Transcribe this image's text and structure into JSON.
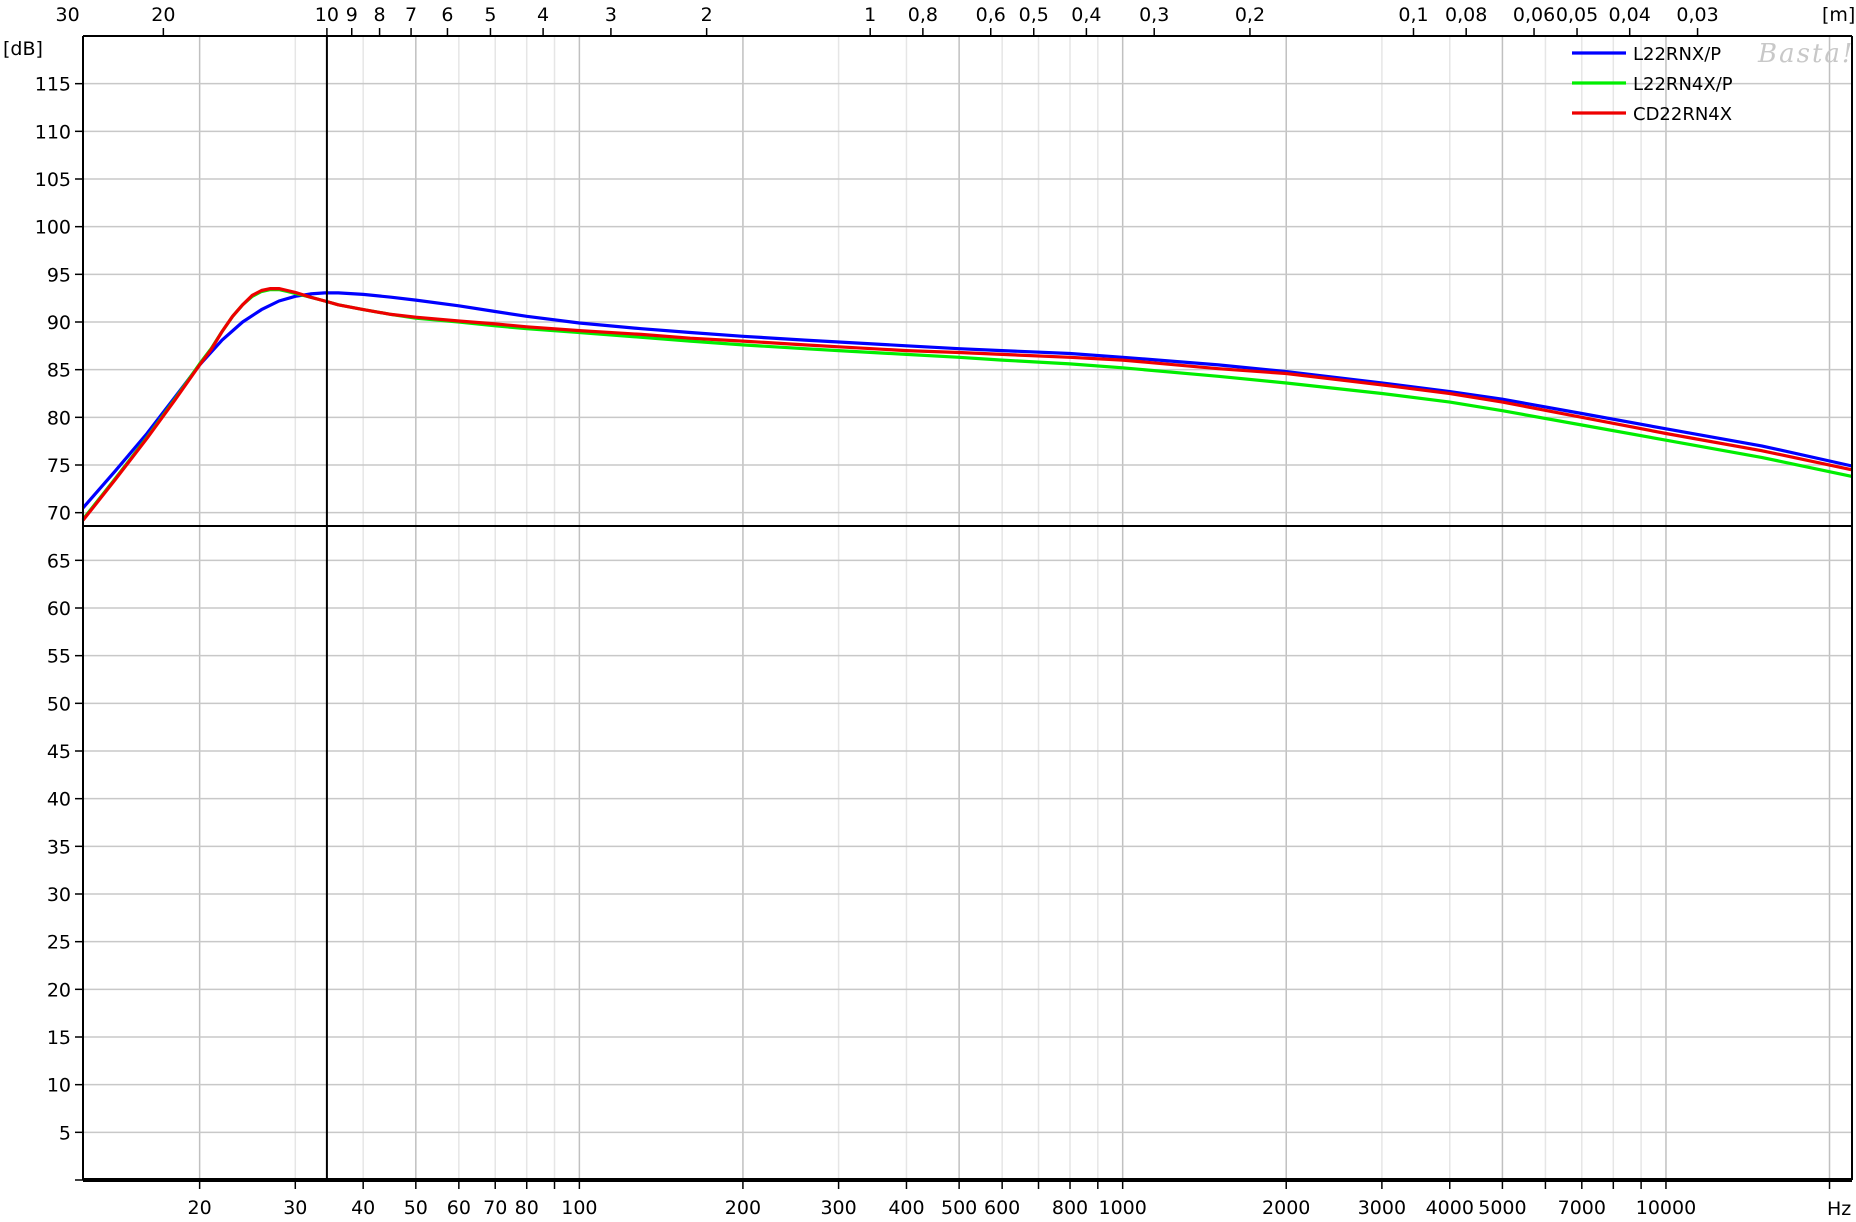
{
  "chart_data": {
    "type": "line",
    "xscale": "log",
    "xlim": [
      12.2,
      22000
    ],
    "ylim": [
      0,
      120
    ],
    "y_unit_label": "[dB]",
    "x_unit_label": "Hz",
    "top_unit_label": "[m]",
    "watermark": "Basta!",
    "grid": true,
    "legend_position": "top-right",
    "y_ticks": [
      5,
      10,
      15,
      20,
      25,
      30,
      35,
      40,
      45,
      50,
      55,
      60,
      65,
      70,
      75,
      80,
      85,
      90,
      95,
      100,
      105,
      110,
      115
    ],
    "x_ticks": [
      {
        "value": 20,
        "label": "20"
      },
      {
        "value": 30,
        "label": "30"
      },
      {
        "value": 40,
        "label": "40"
      },
      {
        "value": 50,
        "label": "50"
      },
      {
        "value": 60,
        "label": "60"
      },
      {
        "value": 70,
        "label": "70"
      },
      {
        "value": 80,
        "label": "80"
      },
      {
        "value": 100,
        "label": "100"
      },
      {
        "value": 200,
        "label": "200"
      },
      {
        "value": 300,
        "label": "300"
      },
      {
        "value": 400,
        "label": "400"
      },
      {
        "value": 500,
        "label": "500"
      },
      {
        "value": 600,
        "label": "600"
      },
      {
        "value": 800,
        "label": "800"
      },
      {
        "value": 1000,
        "label": "1000"
      },
      {
        "value": 2000,
        "label": "2000"
      },
      {
        "value": 3000,
        "label": "3000"
      },
      {
        "value": 4000,
        "label": "4000"
      },
      {
        "value": 5000,
        "label": "5000"
      },
      {
        "value": 7000,
        "label": "7000"
      },
      {
        "value": 10000,
        "label": "10000"
      }
    ],
    "top_ticks": [
      {
        "freq": 11.43,
        "label": "30"
      },
      {
        "freq": 17.15,
        "label": "20"
      },
      {
        "freq": 34.3,
        "label": "10"
      },
      {
        "freq": 38.11,
        "label": "9"
      },
      {
        "freq": 42.88,
        "label": "8"
      },
      {
        "freq": 49.0,
        "label": "7"
      },
      {
        "freq": 57.17,
        "label": "6"
      },
      {
        "freq": 68.6,
        "label": "5"
      },
      {
        "freq": 85.75,
        "label": "4"
      },
      {
        "freq": 114.3,
        "label": "3"
      },
      {
        "freq": 171.5,
        "label": "2"
      },
      {
        "freq": 343,
        "label": "1"
      },
      {
        "freq": 428.8,
        "label": "0,8"
      },
      {
        "freq": 571.7,
        "label": "0,6"
      },
      {
        "freq": 686,
        "label": "0,5"
      },
      {
        "freq": 857.5,
        "label": "0,4"
      },
      {
        "freq": 1143,
        "label": "0,3"
      },
      {
        "freq": 1715,
        "label": "0,2"
      },
      {
        "freq": 3430,
        "label": "0,1"
      },
      {
        "freq": 4288,
        "label": "0,08"
      },
      {
        "freq": 5717,
        "label": "0,06"
      },
      {
        "freq": 6860,
        "label": "0,05"
      },
      {
        "freq": 8575,
        "label": "0,04"
      },
      {
        "freq": 11433,
        "label": "0,03"
      }
    ],
    "cursor": {
      "freq": 34.3,
      "db": 68.6
    },
    "series": [
      {
        "name": "L22RNX/P",
        "color": "#0000ff",
        "x": [
          12.2,
          14,
          16,
          18,
          20,
          22,
          24,
          26,
          28,
          30,
          32,
          34,
          36,
          40,
          45,
          50,
          60,
          70,
          80,
          100,
          130,
          160,
          200,
          260,
          300,
          400,
          500,
          600,
          800,
          1000,
          1500,
          2000,
          3000,
          4000,
          5000,
          7000,
          10000,
          15000,
          22000
        ],
        "y": [
          70.5,
          74.4,
          78.3,
          82.1,
          85.5,
          88.1,
          90,
          91.3,
          92.2,
          92.7,
          92.95,
          93.05,
          93.05,
          92.9,
          92.6,
          92.3,
          91.7,
          91.1,
          90.6,
          89.9,
          89.3,
          88.9,
          88.5,
          88.1,
          87.9,
          87.5,
          87.2,
          87,
          86.7,
          86.3,
          85.5,
          84.8,
          83.6,
          82.7,
          81.9,
          80.4,
          78.8,
          77,
          74.9
        ]
      },
      {
        "name": "L22RN4X/P",
        "color": "#00ee00",
        "x": [
          12.2,
          14,
          16,
          18,
          20,
          21,
          22,
          23,
          24,
          25,
          26,
          27,
          28,
          29,
          30,
          32,
          34,
          36,
          40,
          45,
          50,
          60,
          70,
          80,
          100,
          130,
          160,
          200,
          260,
          300,
          400,
          500,
          600,
          800,
          1000,
          1500,
          2000,
          3000,
          4000,
          5000,
          7000,
          10000,
          15000,
          22000
        ],
        "y": [
          69.3,
          73.6,
          77.9,
          81.9,
          85.6,
          87.2,
          89,
          90.6,
          91.8,
          92.7,
          93.2,
          93.4,
          93.4,
          93.2,
          93,
          92.6,
          92.2,
          91.8,
          91.3,
          90.8,
          90.4,
          90,
          89.6,
          89.3,
          88.9,
          88.4,
          88,
          87.6,
          87.2,
          87,
          86.6,
          86.3,
          86,
          85.6,
          85.2,
          84.3,
          83.6,
          82.5,
          81.6,
          80.7,
          79.2,
          77.6,
          75.8,
          73.8
        ]
      },
      {
        "name": "CD22RN4X",
        "color": "#ee0000",
        "x": [
          12.2,
          14,
          16,
          18,
          20,
          21,
          22,
          23,
          24,
          25,
          26,
          27,
          28,
          29,
          30,
          32,
          34,
          36,
          40,
          45,
          50,
          60,
          70,
          80,
          100,
          130,
          160,
          200,
          260,
          300,
          400,
          500,
          600,
          800,
          1000,
          1500,
          2000,
          3000,
          4000,
          5000,
          7000,
          10000,
          15000,
          22000
        ],
        "y": [
          69.2,
          73.5,
          77.8,
          81.8,
          85.5,
          87.1,
          89,
          90.6,
          91.8,
          92.8,
          93.3,
          93.5,
          93.5,
          93.3,
          93.1,
          92.6,
          92.2,
          91.8,
          91.3,
          90.8,
          90.5,
          90.1,
          89.8,
          89.5,
          89.1,
          88.7,
          88.3,
          88,
          87.6,
          87.4,
          87,
          86.8,
          86.6,
          86.3,
          86,
          85.1,
          84.6,
          83.4,
          82.5,
          81.6,
          80,
          78.3,
          76.5,
          74.5
        ]
      }
    ]
  }
}
